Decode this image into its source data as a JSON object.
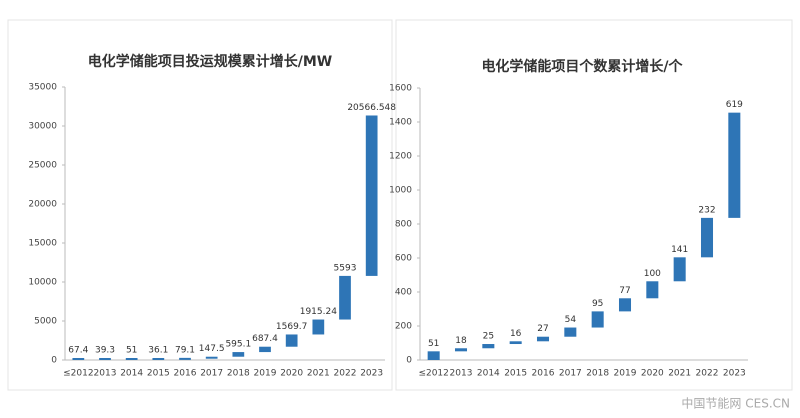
{
  "chart_data": [
    {
      "type": "waterfall",
      "title": "电化学储能项目投运规模累计增长/MW",
      "categories": [
        "≤2012",
        "2013",
        "2014",
        "2015",
        "2016",
        "2017",
        "2018",
        "2019",
        "2020",
        "2021",
        "2022",
        "2023"
      ],
      "values": [
        67.4,
        39.3,
        51,
        36.1,
        79.1,
        147.5,
        595.1,
        687.4,
        1569.7,
        1915.24,
        5593,
        20566.548
      ],
      "color": "#2e75b6",
      "ylim": [
        0,
        35000
      ],
      "yticks": [
        0,
        5000,
        10000,
        15000,
        20000,
        25000,
        30000,
        35000
      ]
    },
    {
      "type": "waterfall",
      "title": "电化学储能项目个数累计增长/个",
      "categories": [
        "≤2012",
        "2013",
        "2014",
        "2015",
        "2016",
        "2017",
        "2018",
        "2019",
        "2020",
        "2021",
        "2022",
        "2023"
      ],
      "values": [
        51,
        18,
        25,
        16,
        27,
        54,
        95,
        77,
        100,
        141,
        232,
        619
      ],
      "color": "#2e75b6",
      "ylim": [
        0,
        1600
      ],
      "yticks": [
        0,
        200,
        400,
        600,
        800,
        1000,
        1200,
        1400,
        1600
      ]
    }
  ],
  "watermark": "中国节能网 CES.CN"
}
